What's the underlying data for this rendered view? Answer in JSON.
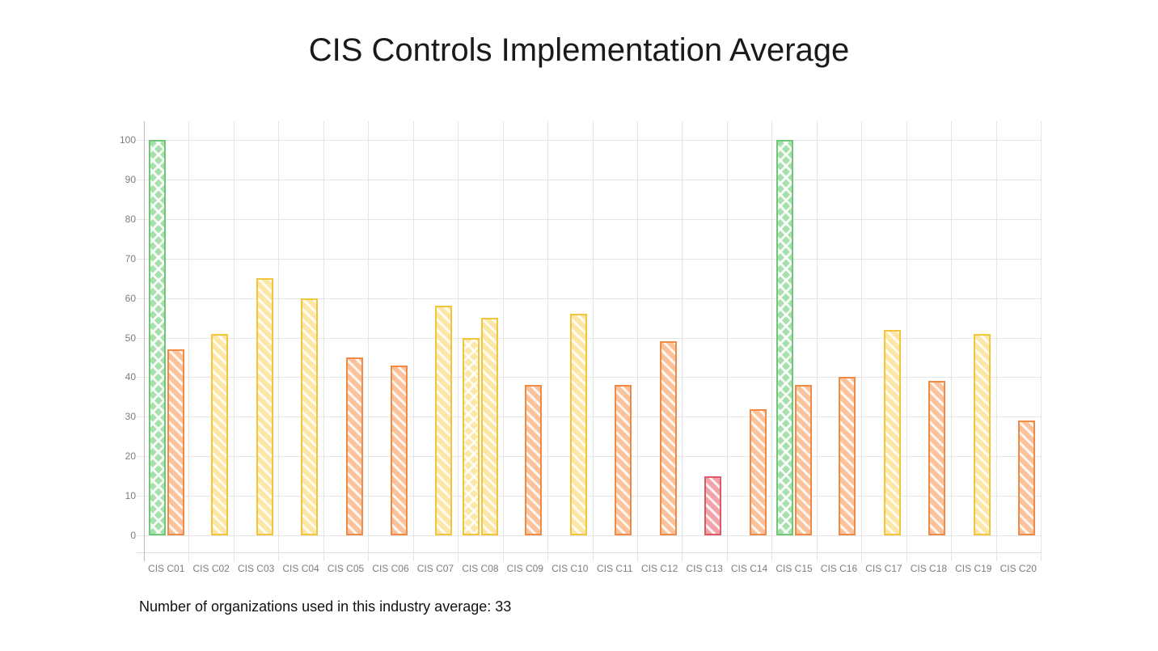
{
  "title": "CIS Controls Implementation Average",
  "footer": "Number of organizations used in this industry average: 33",
  "palette": {
    "green": {
      "fill": "#a8e0ad",
      "border": "#6fc877"
    },
    "yellow": {
      "fill": "#fce7a6",
      "border": "#f2c53d"
    },
    "orange": {
      "fill": "#fbc29c",
      "border": "#ef8b45"
    },
    "pink": {
      "fill": "#f0a3a8",
      "border": "#dd5a64"
    }
  },
  "chart_data": {
    "type": "bar",
    "title": "CIS Controls Implementation Average",
    "xlabel": "",
    "ylabel": "",
    "ylim": [
      0,
      100
    ],
    "ytick_interval": 10,
    "yticks": [
      0,
      10,
      20,
      30,
      40,
      50,
      60,
      70,
      80,
      90,
      100
    ],
    "grid": true,
    "legend": "none",
    "color_rule": "green = 100, yellow >= 50, orange 20-49, pink < 20",
    "categories": [
      "CIS C01",
      "CIS C02",
      "CIS C03",
      "CIS C04",
      "CIS C05",
      "CIS C06",
      "CIS C07",
      "CIS C08",
      "CIS C09",
      "CIS C10",
      "CIS C11",
      "CIS C12",
      "CIS C13",
      "CIS C14",
      "CIS C15",
      "CIS C16",
      "CIS C17",
      "CIS C18",
      "CIS C19",
      "CIS C20"
    ],
    "groups": [
      {
        "category": "CIS C01",
        "bars": [
          {
            "value": 100,
            "color": "green",
            "pattern": "zigzag"
          },
          {
            "value": 47,
            "color": "orange",
            "pattern": "stripe"
          }
        ]
      },
      {
        "category": "CIS C02",
        "bars": [
          {
            "value": 51,
            "color": "yellow",
            "pattern": "stripe"
          }
        ]
      },
      {
        "category": "CIS C03",
        "bars": [
          {
            "value": 65,
            "color": "yellow",
            "pattern": "stripe"
          }
        ]
      },
      {
        "category": "CIS C04",
        "bars": [
          {
            "value": 60,
            "color": "yellow",
            "pattern": "stripe"
          }
        ]
      },
      {
        "category": "CIS C05",
        "bars": [
          {
            "value": 45,
            "color": "orange",
            "pattern": "stripe"
          }
        ]
      },
      {
        "category": "CIS C06",
        "bars": [
          {
            "value": 43,
            "color": "orange",
            "pattern": "stripe"
          }
        ]
      },
      {
        "category": "CIS C07",
        "bars": [
          {
            "value": 58,
            "color": "yellow",
            "pattern": "stripe"
          }
        ]
      },
      {
        "category": "CIS C08",
        "bars": [
          {
            "value": 50,
            "color": "yellow",
            "pattern": "zigzag"
          },
          {
            "value": 55,
            "color": "yellow",
            "pattern": "stripe"
          }
        ]
      },
      {
        "category": "CIS C09",
        "bars": [
          {
            "value": 38,
            "color": "orange",
            "pattern": "stripe"
          }
        ]
      },
      {
        "category": "CIS C10",
        "bars": [
          {
            "value": 56,
            "color": "yellow",
            "pattern": "stripe"
          }
        ]
      },
      {
        "category": "CIS C11",
        "bars": [
          {
            "value": 38,
            "color": "orange",
            "pattern": "stripe"
          }
        ]
      },
      {
        "category": "CIS C12",
        "bars": [
          {
            "value": 49,
            "color": "orange",
            "pattern": "stripe"
          }
        ]
      },
      {
        "category": "CIS C13",
        "bars": [
          {
            "value": 15,
            "color": "pink",
            "pattern": "stripe"
          }
        ]
      },
      {
        "category": "CIS C14",
        "bars": [
          {
            "value": 32,
            "color": "orange",
            "pattern": "stripe"
          }
        ]
      },
      {
        "category": "CIS C15",
        "bars": [
          {
            "value": 100,
            "color": "green",
            "pattern": "zigzag"
          },
          {
            "value": 38,
            "color": "orange",
            "pattern": "stripe"
          }
        ]
      },
      {
        "category": "CIS C16",
        "bars": [
          {
            "value": 40,
            "color": "orange",
            "pattern": "stripe"
          }
        ]
      },
      {
        "category": "CIS C17",
        "bars": [
          {
            "value": 52,
            "color": "yellow",
            "pattern": "stripe"
          }
        ]
      },
      {
        "category": "CIS C18",
        "bars": [
          {
            "value": 39,
            "color": "orange",
            "pattern": "stripe"
          }
        ]
      },
      {
        "category": "CIS C19",
        "bars": [
          {
            "value": 51,
            "color": "yellow",
            "pattern": "stripe"
          }
        ]
      },
      {
        "category": "CIS C20",
        "bars": [
          {
            "value": 29,
            "color": "orange",
            "pattern": "stripe"
          }
        ]
      }
    ]
  }
}
